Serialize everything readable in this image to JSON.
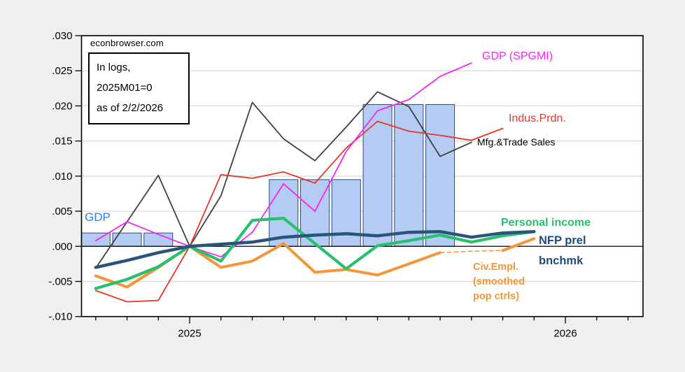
{
  "watermark": "econbrowser.com",
  "note_box": {
    "line1": "In logs,",
    "line2": "2025M01=0",
    "line3": "as of 2/2/2026"
  },
  "labels": {
    "gdp_bars": {
      "text": "GDP",
      "color": "#2e7fe8"
    },
    "gdp_spgmi": {
      "text": "GDP (SPGMI)",
      "color": "#f724f7"
    },
    "indus_prdn": {
      "text": "Indus.Prdn.",
      "color": "#e73527"
    },
    "mfg_trade": {
      "text": "Mfg.&Trade Sales",
      "color": "#000000"
    },
    "personal_income": {
      "text": "Personal income",
      "color": "#27c06c"
    },
    "nfp": {
      "line1": "NFP prel",
      "line2": "bnchmk",
      "color": "#1d4d80"
    },
    "civ_empl": {
      "line1": "Civ.Empl.",
      "line2": "(smoothed",
      "line3": "pop ctrls)",
      "color": "#f5953a"
    }
  },
  "chart_data": {
    "type": "combo_bar_line",
    "title": "Key indicators in logs, 2025M01=0, as of 2/2/2026",
    "months": [
      "2024-10",
      "2024-11",
      "2024-12",
      "2025-01",
      "2025-02",
      "2025-03",
      "2025-04",
      "2025-05",
      "2025-06",
      "2025-07",
      "2025-08",
      "2025-09",
      "2025-10",
      "2025-11",
      "2025-12",
      "2026-01"
    ],
    "ylim": [
      -0.01,
      0.03
    ],
    "ytick_step": 0.005,
    "grid": "horizontal-light-gray",
    "y_axis": {
      "ticks": [
        {
          "label": ".030",
          "value": 0.03
        },
        {
          "label": ".025",
          "value": 0.025
        },
        {
          "label": ".020",
          "value": 0.02
        },
        {
          "label": ".015",
          "value": 0.015
        },
        {
          "label": ".010",
          "value": 0.01
        },
        {
          "label": ".005",
          "value": 0.005
        },
        {
          "label": ".000",
          "value": 0.0
        },
        {
          "label": "-.005",
          "value": -0.005
        },
        {
          "label": "-.010",
          "value": -0.01
        }
      ]
    },
    "x_axis": {
      "year_ticks": [
        {
          "index": 3,
          "label": "2025"
        },
        {
          "index": 15,
          "label": "2026"
        }
      ],
      "minor_tick_count": 18
    },
    "bars": {
      "name": "GDP (quarterly)",
      "fill": "#b4ccf3",
      "stroke": "#2b4a7d",
      "values": [
        0.0019,
        0.0019,
        0.0019,
        null,
        null,
        null,
        0.0095,
        0.0095,
        0.0095,
        0.0202,
        0.0202,
        0.0202,
        null,
        null,
        null,
        null
      ]
    },
    "series": [
      {
        "name": "Mfg.&Trade Sales",
        "color": "#3f3f3f",
        "width": 1.8,
        "values": [
          -0.0031,
          0.0035,
          0.0101,
          0,
          0.0072,
          0.0205,
          0.0153,
          0.0122,
          0.017,
          0.022,
          0.0199,
          0.0128,
          0.0148,
          null,
          null,
          null
        ]
      },
      {
        "name": "Indus.Prdn.",
        "color": "#e73527",
        "width": 1.8,
        "values": [
          -0.0063,
          -0.0079,
          -0.0077,
          0,
          0.0102,
          0.0097,
          0.0106,
          0.009,
          0.014,
          0.0178,
          0.0164,
          0.0158,
          0.0151,
          0.0168,
          null,
          null
        ]
      },
      {
        "name": "GDP (SPGMI)",
        "color": "#f724f7",
        "width": 1.8,
        "values": [
          0.0008,
          0.0035,
          0.0017,
          0,
          -0.0015,
          0.002,
          0.0089,
          0.005,
          0.0135,
          0.0193,
          0.0209,
          0.0242,
          0.0261,
          null,
          null,
          null
        ]
      },
      {
        "name": "Civ.Empl. (smoothed pop ctrls)",
        "color": "#f5953a",
        "width": 4,
        "values": [
          -0.0042,
          -0.0058,
          -0.003,
          0,
          -0.003,
          -0.0021,
          0.0004,
          -0.0037,
          -0.0033,
          -0.0041,
          -0.0025,
          -0.0009,
          -0.0007,
          -0.0006,
          0.0011,
          null
        ],
        "segments": [
          {
            "from": 0,
            "to": 11
          },
          {
            "from": 11,
            "to": 13,
            "dash": "6 4",
            "width": 1.5
          },
          {
            "from": 13,
            "to": 14
          }
        ]
      },
      {
        "name": "Personal income",
        "color": "#27c06c",
        "width": 4.2,
        "values": [
          -0.006,
          -0.0047,
          -0.0029,
          0,
          -0.0021,
          0.0037,
          0.004,
          0.0004,
          -0.0032,
          0.0001,
          0.0008,
          0.0016,
          0.0006,
          0.0015,
          0.0021,
          null
        ]
      },
      {
        "name": "NFP prel bnchmk",
        "color": "#28547e",
        "width": 4.5,
        "values": [
          -0.003,
          -0.002,
          -0.0009,
          0,
          0.0003,
          0.0006,
          0.0013,
          0.0016,
          0.0018,
          0.0015,
          0.002,
          0.0021,
          0.0013,
          0.0019,
          0.0021,
          null
        ]
      }
    ],
    "colors": {
      "background": "#efefef",
      "plot_background": "#ffffff",
      "plot_border": "#000000",
      "gridline": "#d9d9d9",
      "zero_line": "#000000"
    }
  }
}
